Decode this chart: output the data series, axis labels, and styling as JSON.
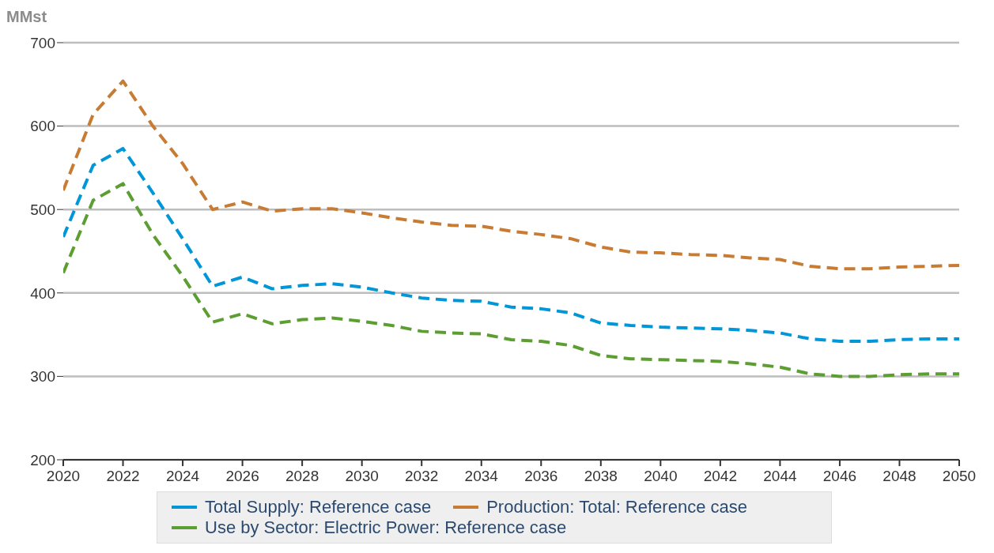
{
  "chart_data": {
    "type": "line",
    "ylabel": "MMst",
    "x": [
      2020,
      2021,
      2022,
      2023,
      2024,
      2025,
      2026,
      2027,
      2028,
      2029,
      2030,
      2031,
      2032,
      2033,
      2034,
      2035,
      2036,
      2037,
      2038,
      2039,
      2040,
      2041,
      2042,
      2043,
      2044,
      2045,
      2046,
      2047,
      2048,
      2049,
      2050
    ],
    "series": [
      {
        "name": "Total Supply: Reference case",
        "color": "#0096d7",
        "values": [
          467,
          553,
          573,
          520,
          465,
          408,
          419,
          405,
          409,
          411,
          407,
          400,
          394,
          391,
          390,
          383,
          381,
          376,
          364,
          361,
          359,
          358,
          357,
          355,
          352,
          345,
          342,
          342,
          344,
          345,
          345
        ]
      },
      {
        "name": "Production: Total: Reference case",
        "color": "#c87b33",
        "values": [
          523,
          614,
          654,
          600,
          555,
          500,
          509,
          498,
          501,
          501,
          496,
          490,
          485,
          481,
          480,
          474,
          470,
          465,
          455,
          449,
          448,
          446,
          445,
          442,
          440,
          432,
          429,
          429,
          431,
          432,
          433
        ]
      },
      {
        "name": "Use by Sector: Electric Power: Reference case",
        "color": "#5c9e32",
        "values": [
          424,
          511,
          531,
          470,
          420,
          365,
          375,
          363,
          368,
          370,
          366,
          361,
          354,
          352,
          351,
          344,
          342,
          337,
          325,
          321,
          320,
          319,
          318,
          315,
          311,
          303,
          300,
          300,
          302,
          303,
          303
        ]
      }
    ],
    "xlim": [
      2020,
      2050
    ],
    "xticks": [
      2020,
      2022,
      2024,
      2026,
      2028,
      2030,
      2032,
      2034,
      2036,
      2038,
      2040,
      2042,
      2044,
      2046,
      2048,
      2050
    ],
    "ylim": [
      200,
      700
    ],
    "yticks": [
      200,
      300,
      400,
      500,
      600,
      700
    ],
    "grid": "y",
    "legend": "bottom",
    "line_style": "dashed",
    "marker": "none"
  }
}
